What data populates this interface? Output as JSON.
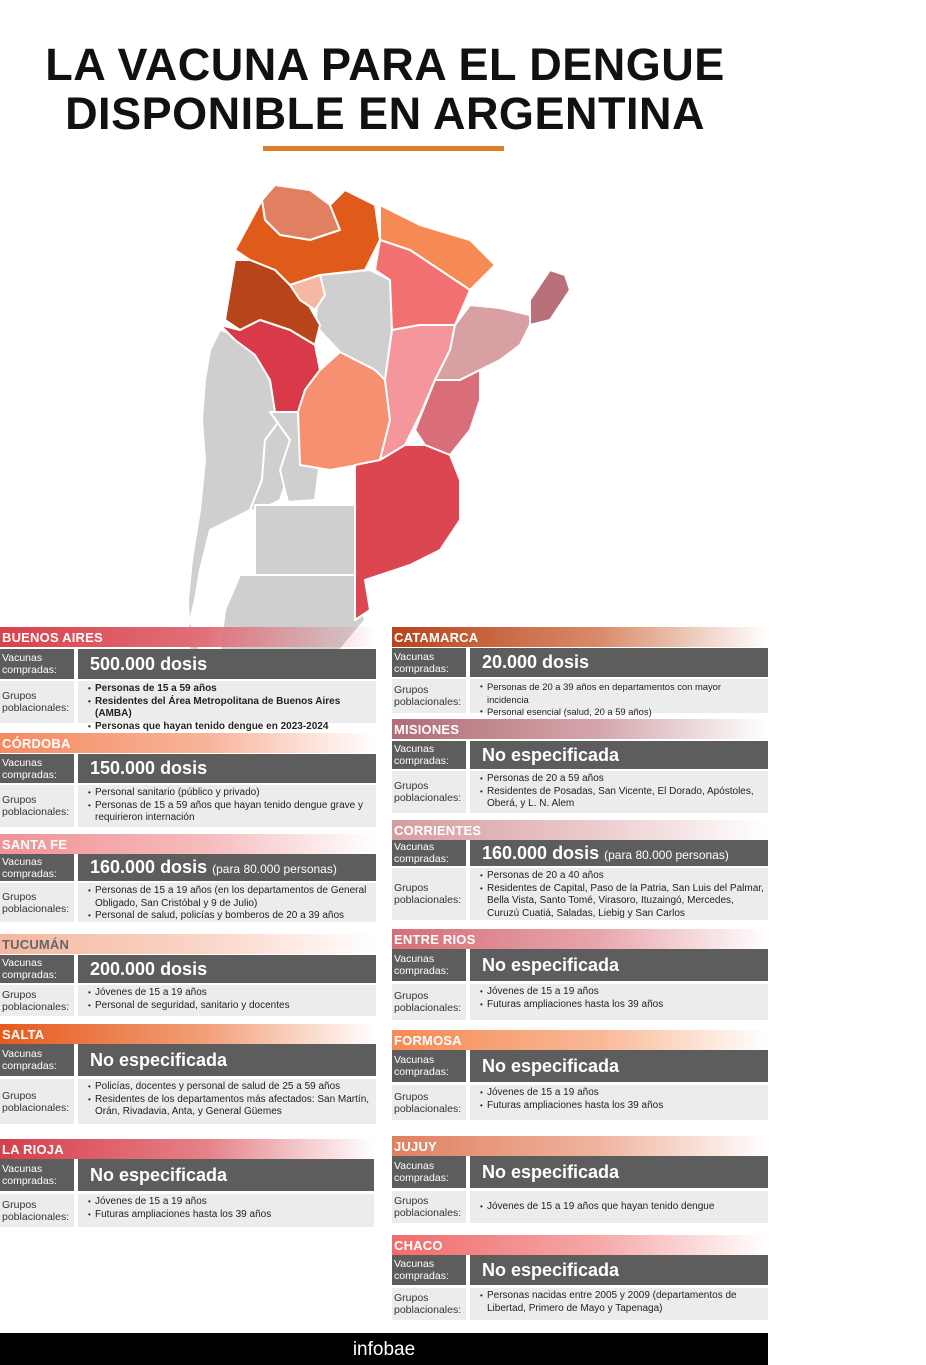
{
  "title": {
    "line1": "LA VACUNA PARA EL DENGUE",
    "line2": "DISPONIBLE EN ARGENTINA"
  },
  "labels": {
    "vacunas1": "Vacunas",
    "vacunas2": "compradas:",
    "grupos1": "Grupos",
    "grupos2": "poblacionales:"
  },
  "colors": {
    "accent": "#e07b28",
    "dark": "#5d5d5d",
    "light": "#ececec",
    "gray_province": "#cfcfcf"
  },
  "provinces": [
    {
      "name": "BUENOS AIRES",
      "dosis": "500.000 dosis",
      "note": "",
      "bold_groups": true,
      "groups": [
        "Personas de 15 a 59 años",
        "Residentes del Área Metropolitana de Buenos Aires (AMBA)",
        "Personas que hayan tenido dengue en 2023-2024"
      ]
    },
    {
      "name": "CÓRDOBA",
      "dosis": "150.000 dosis",
      "note": "",
      "groups": [
        "Personal sanitario (público y privado)",
        "Personas de 15 a 59 años que hayan tenido dengue grave y requirieron internación"
      ]
    },
    {
      "name": "SANTA FE",
      "dosis": "160.000 dosis",
      "note": "(para 80.000 personas)",
      "groups": [
        "Personas de 15 a 19 años (en los departamentos de General Obligado, San Cristóbal y 9 de Julio)",
        "Personal de salud, policías y bomberos de 20 a 39 años"
      ]
    },
    {
      "name": "TUCUMÁN",
      "dosis": "200.000 dosis",
      "note": "",
      "groups": [
        "Jóvenes de 15 a 19 años",
        "Personal de seguridad, sanitario y docentes"
      ]
    },
    {
      "name": "SALTA",
      "dosis": "No especificada",
      "note": "",
      "groups": [
        "Policías, docentes y personal de salud de 25 a 59 años",
        "Residentes de los departamentos más afectados: San Martín, Orán, Rivadavia, Anta, y General Güemes"
      ]
    },
    {
      "name": "LA RIOJA",
      "dosis": "No especificada",
      "note": "",
      "groups": [
        "Jóvenes de 15 a 19 años",
        "Futuras ampliaciones hasta los 39 años"
      ]
    },
    {
      "name": "CATAMARCA",
      "dosis": "20.000 dosis",
      "note": "",
      "groups": [
        "Personas de 20 a 39 años en departamentos con mayor incidencia",
        "Personal esencial (salud, 20 a 59 años)"
      ]
    },
    {
      "name": "MISIONES",
      "dosis": "No especificada",
      "note": "",
      "groups": [
        "Personas de 20 a 59 años",
        "Residentes de Posadas, San Vicente, El Dorado, Apóstoles, Oberá, y L. N. Alem"
      ]
    },
    {
      "name": "CORRIENTES",
      "dosis": "160.000 dosis",
      "note": "(para 80.000 personas)",
      "groups": [
        "Personas de 20 a 40 años",
        "Residentes de Capital, Paso de la Patria, San Luis del Palmar, Bella Vista, Santo Tomé, Virasoro, Ituzaingó, Mercedes, Curuzú Cuatiá, Saladas, Liebig y San Carlos"
      ]
    },
    {
      "name": "ENTRE RIOS",
      "dosis": "No especificada",
      "note": "",
      "groups": [
        "Jóvenes de 15 a 19 años",
        "Futuras ampliaciones hasta los 39 años"
      ]
    },
    {
      "name": "FORMOSA",
      "dosis": "No especificada",
      "note": "",
      "groups": [
        "Jóvenes de 15 a 19 años",
        "Futuras ampliaciones hasta los 39 años"
      ]
    },
    {
      "name": "JUJUY",
      "dosis": "No especificada",
      "note": "",
      "groups": [
        "Jóvenes de 15 a 19 años que hayan tenido dengue"
      ]
    },
    {
      "name": "CHACO",
      "dosis": "No especificada",
      "note": "",
      "groups": [
        "Personas nacidas entre 2005 y 2009 (departamentos de Libertad, Primero de Mayo y Tapenaga)"
      ]
    }
  ],
  "footer": {
    "brand": "infobae"
  }
}
